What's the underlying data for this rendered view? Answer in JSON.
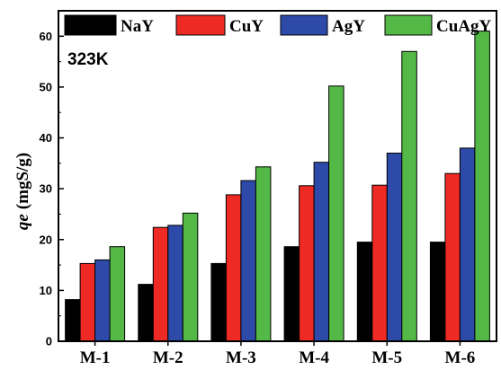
{
  "chart_data": {
    "type": "bar",
    "categories": [
      "M-1",
      "M-2",
      "M-3",
      "M-4",
      "M-5",
      "M-6"
    ],
    "series": [
      {
        "name": "NaY",
        "color": "#000000",
        "values": [
          8.2,
          11.2,
          15.3,
          18.6,
          19.5,
          19.5
        ]
      },
      {
        "name": "CuY",
        "color": "#ee2a24",
        "values": [
          15.3,
          22.4,
          28.8,
          30.6,
          30.7,
          33.0
        ]
      },
      {
        "name": "AgY",
        "color": "#2e4aa8",
        "values": [
          16.0,
          22.8,
          31.6,
          35.2,
          37.0,
          38.0
        ]
      },
      {
        "name": "CuAgY",
        "color": "#54b846",
        "values": [
          18.6,
          25.2,
          34.3,
          50.2,
          57.0,
          61.0
        ]
      }
    ],
    "ylabel_symbol": "qe",
    "ylabel_unit": "(mgS/g)",
    "xlabel": "",
    "ylim": [
      0,
      65
    ],
    "yticks": [
      0,
      10,
      20,
      30,
      40,
      50,
      60
    ],
    "annotation": "323K",
    "grid": false,
    "legend_position": "top"
  }
}
